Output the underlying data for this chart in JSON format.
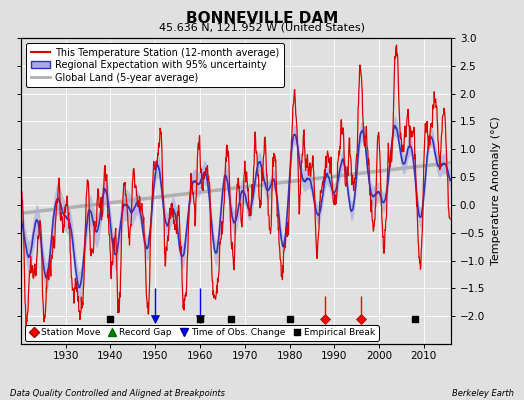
{
  "title": "BONNEVILLE DAM",
  "subtitle": "45.636 N, 121.952 W (United States)",
  "ylabel": "Temperature Anomaly (°C)",
  "footer_left": "Data Quality Controlled and Aligned at Breakpoints",
  "footer_right": "Berkeley Earth",
  "xlim": [
    1920,
    2016
  ],
  "ylim": [
    -2.5,
    3.0
  ],
  "yticks": [
    -2,
    -1.5,
    -1,
    -0.5,
    0,
    0.5,
    1,
    1.5,
    2,
    2.5,
    3
  ],
  "xticks": [
    1930,
    1940,
    1950,
    1960,
    1970,
    1980,
    1990,
    2000,
    2010
  ],
  "bg_color": "#e0e0e0",
  "plot_bg_color": "#e0e0e0",
  "station_moves": [
    1988,
    1996
  ],
  "obs_changes": [
    1950,
    1960
  ],
  "empirical_breaks": [
    1940,
    1960,
    1967,
    1980,
    2008
  ],
  "marker_y": -2.05,
  "legend_entries": [
    {
      "label": "This Temperature Station (12-month average)",
      "color": "#dd0000",
      "lw": 1.2
    },
    {
      "label": "Regional Expectation with 95% uncertainty",
      "color": "#3333bb",
      "lw": 1.2,
      "fill": "#aaaadd"
    },
    {
      "label": "Global Land (5-year average)",
      "color": "#b0b0b0",
      "lw": 2.5
    }
  ]
}
